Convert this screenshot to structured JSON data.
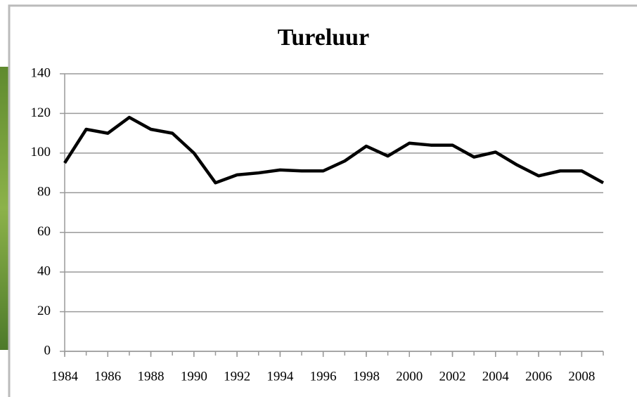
{
  "chart_data": {
    "type": "line",
    "title": "Tureluur",
    "x": [
      1984,
      1985,
      1986,
      1987,
      1988,
      1989,
      1990,
      1991,
      1992,
      1993,
      1994,
      1995,
      1996,
      1997,
      1998,
      1999,
      2000,
      2001,
      2002,
      2003,
      2004,
      2005,
      2006,
      2007,
      2008,
      2009
    ],
    "series": [
      {
        "name": "Tureluur",
        "color": "#000000",
        "values": [
          95,
          112,
          110,
          118,
          112,
          110,
          100,
          85,
          89,
          90,
          91.5,
          91,
          91,
          96,
          103.5,
          98.5,
          105,
          104,
          104,
          98,
          100.5,
          94,
          88.5,
          91,
          91,
          85
        ]
      }
    ],
    "xlim": [
      1984,
      2009
    ],
    "xticks": [
      1984,
      1986,
      1988,
      1990,
      1992,
      1994,
      1996,
      1998,
      2000,
      2002,
      2004,
      2006,
      2008
    ],
    "ylim": [
      0,
      140
    ],
    "yticks": [
      0,
      20,
      40,
      60,
      80,
      100,
      120,
      140
    ],
    "grid": true
  }
}
